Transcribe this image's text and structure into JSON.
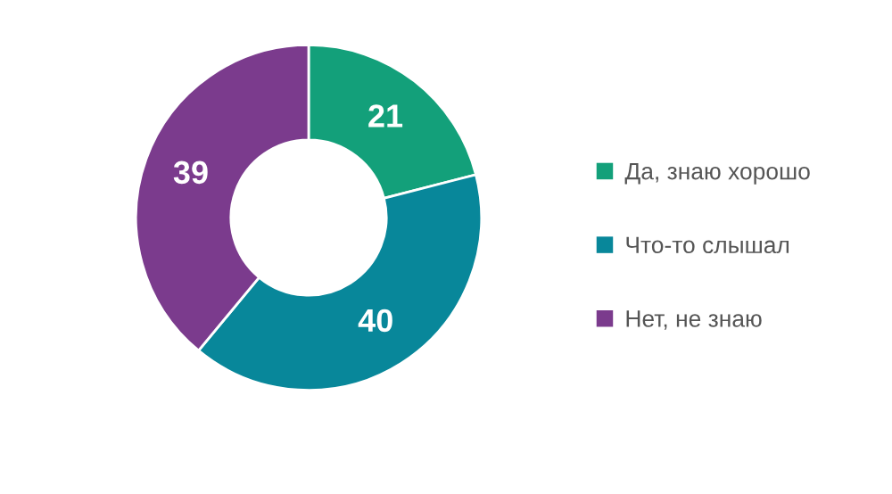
{
  "chart_data": {
    "type": "donut",
    "categories": [
      "Да, знаю хорошо",
      "Что-то слышал",
      "Нет, не знаю"
    ],
    "values": [
      21,
      40,
      39
    ],
    "colors": [
      "#13a07a",
      "#08879a",
      "#7b3b8d"
    ],
    "data_labels": true,
    "legend": "right"
  }
}
